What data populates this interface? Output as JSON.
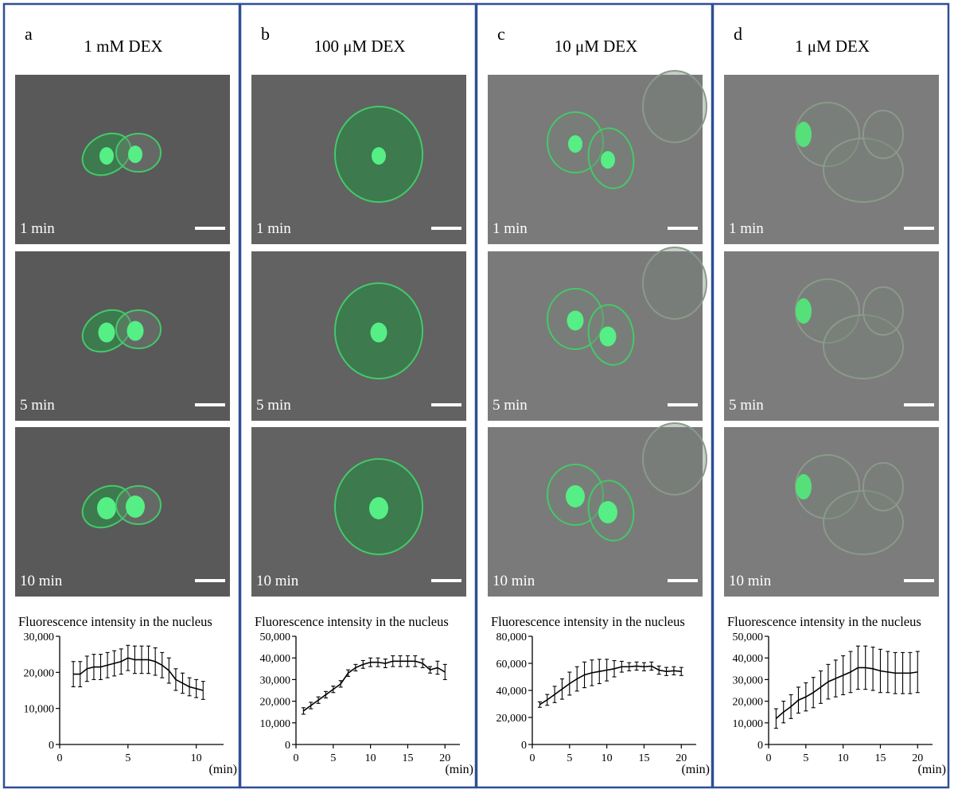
{
  "panels": [
    {
      "letter": "a",
      "title": "1 mM DEX",
      "image_labels": [
        "1 min",
        "5 min",
        "10 min"
      ]
    },
    {
      "letter": "b",
      "title": "100 μM DEX",
      "image_labels": [
        "1 min",
        "5 min",
        "10 min"
      ]
    },
    {
      "letter": "c",
      "title": "10 μM DEX",
      "image_labels": [
        "1 min",
        "5 min",
        "10 min"
      ]
    },
    {
      "letter": "d",
      "title": "1 μM DEX",
      "image_labels": [
        "1 min",
        "5 min",
        "10 min"
      ]
    }
  ],
  "chart_data": [
    {
      "type": "line",
      "title": "Fluorescence intensity in the nucleus",
      "x_label": "(min)",
      "x": [
        1,
        1.5,
        2,
        2.5,
        3,
        3.5,
        4,
        4.5,
        5,
        5.5,
        6,
        6.5,
        7,
        7.5,
        8,
        8.5,
        9,
        9.5,
        10,
        10.5
      ],
      "series": [
        {
          "color": "#000000",
          "values": [
            19500,
            19500,
            21000,
            21500,
            21500,
            22000,
            22500,
            23000,
            24000,
            23500,
            23500,
            23500,
            23000,
            22000,
            20500,
            18000,
            17000,
            16000,
            15500,
            15000
          ],
          "errors": [
            3500,
            3500,
            3500,
            3500,
            3500,
            3500,
            3500,
            3500,
            3500,
            3800,
            3800,
            3800,
            3800,
            3500,
            3500,
            3000,
            2800,
            2500,
            2500,
            2500
          ]
        }
      ],
      "xlim": [
        0,
        12
      ],
      "xticks": [
        0,
        5,
        10
      ],
      "ylim": [
        0,
        30000
      ],
      "yticks": [
        0,
        {
          "value": 10000,
          "label": "10,000"
        },
        {
          "value": 20000,
          "label": "20,000"
        },
        {
          "value": 30000,
          "label": "30,000"
        }
      ]
    },
    {
      "type": "line",
      "title": "Fluorescence intensity in the nucleus",
      "x_label": "(min)",
      "x": [
        1,
        2,
        3,
        4,
        5,
        6,
        7,
        8,
        9,
        10,
        11,
        12,
        13,
        14,
        15,
        16,
        17,
        18,
        19,
        20
      ],
      "series": [
        {
          "color": "#000000",
          "values": [
            15500,
            18000,
            20500,
            23000,
            25500,
            28000,
            33000,
            35500,
            37000,
            38000,
            38000,
            37500,
            38500,
            38500,
            38500,
            38500,
            37500,
            34500,
            35500,
            33500
          ],
          "errors": [
            1500,
            1500,
            1500,
            1500,
            1500,
            1500,
            1500,
            1500,
            1800,
            2000,
            2000,
            2000,
            2500,
            2500,
            2500,
            2500,
            2000,
            1500,
            3000,
            3500
          ]
        }
      ],
      "xlim": [
        0,
        22
      ],
      "xticks": [
        0,
        5,
        10,
        15,
        20
      ],
      "ylim": [
        0,
        50000
      ],
      "yticks": [
        0,
        {
          "value": 10000,
          "label": "10,000"
        },
        {
          "value": 20000,
          "label": "20,000"
        },
        {
          "value": 30000,
          "label": "30,000"
        },
        {
          "value": 40000,
          "label": "40,000"
        },
        {
          "value": 50000,
          "label": "50,000"
        }
      ]
    },
    {
      "type": "line",
      "title": "Fluorescence intensity in the nucleus",
      "x_label": "(min)",
      "x": [
        1,
        2,
        3,
        4,
        5,
        6,
        7,
        8,
        9,
        10,
        11,
        12,
        13,
        14,
        15,
        16,
        17,
        18,
        19,
        20
      ],
      "series": [
        {
          "color": "#000000",
          "values": [
            29500,
            33000,
            37000,
            41000,
            45000,
            48500,
            51500,
            53000,
            54000,
            55000,
            56000,
            57500,
            57500,
            58000,
            57500,
            58000,
            55000,
            54000,
            54500,
            54000
          ],
          "errors": [
            2000,
            4000,
            6000,
            7500,
            8500,
            9000,
            9500,
            9500,
            9000,
            8000,
            6000,
            4000,
            3000,
            3000,
            3000,
            3000,
            3000,
            3000,
            3000,
            3000
          ]
        }
      ],
      "xlim": [
        0,
        22
      ],
      "xticks": [
        0,
        5,
        10,
        15,
        20
      ],
      "ylim": [
        0,
        80000
      ],
      "yticks": [
        0,
        {
          "value": 20000,
          "label": "20,000"
        },
        {
          "value": 40000,
          "label": "40,000"
        },
        {
          "value": 60000,
          "label": "60,000"
        },
        {
          "value": 80000,
          "label": "80,000"
        }
      ]
    },
    {
      "type": "line",
      "title": "Fluorescence intensity in the nucleus",
      "x_label": "(min)",
      "x": [
        1,
        2,
        3,
        4,
        5,
        6,
        7,
        8,
        9,
        10,
        11,
        12,
        13,
        14,
        15,
        16,
        17,
        18,
        19,
        20
      ],
      "series": [
        {
          "color": "#000000",
          "values": [
            12000,
            15000,
            17500,
            20500,
            22000,
            24000,
            26500,
            29000,
            30500,
            32000,
            33500,
            35500,
            35500,
            35000,
            34000,
            33500,
            33000,
            33000,
            33000,
            33500
          ],
          "errors": [
            4500,
            5000,
            5500,
            6000,
            6500,
            7000,
            7500,
            8000,
            8500,
            9000,
            9500,
            10000,
            10000,
            10000,
            10000,
            9500,
            9500,
            9500,
            9500,
            9500
          ]
        }
      ],
      "xlim": [
        0,
        22
      ],
      "xticks": [
        0,
        5,
        10,
        15,
        20
      ],
      "ylim": [
        0,
        50000
      ],
      "yticks": [
        0,
        {
          "value": 10000,
          "label": "10,000"
        },
        {
          "value": 20000,
          "label": "20,000"
        },
        {
          "value": 30000,
          "label": "30,000"
        },
        {
          "value": 40000,
          "label": "40,000"
        },
        {
          "value": 50000,
          "label": "50,000"
        }
      ]
    }
  ]
}
